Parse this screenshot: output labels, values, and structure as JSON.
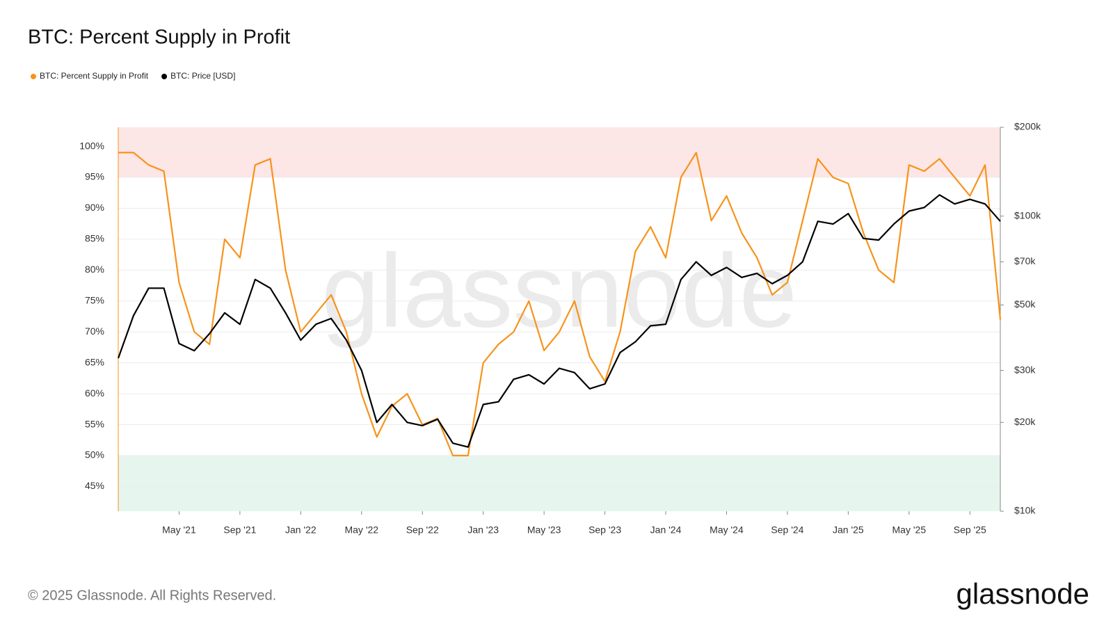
{
  "chart_data": {
    "type": "line",
    "title": "BTC: Percent Supply in Profit",
    "watermark": "glassnode",
    "x": [
      "2021-01",
      "2021-02",
      "2021-03",
      "2021-04",
      "2021-05",
      "2021-06",
      "2021-07",
      "2021-08",
      "2021-09",
      "2021-10",
      "2021-11",
      "2021-12",
      "2022-01",
      "2022-02",
      "2022-03",
      "2022-04",
      "2022-05",
      "2022-06",
      "2022-07",
      "2022-08",
      "2022-09",
      "2022-10",
      "2022-11",
      "2022-12",
      "2023-01",
      "2023-02",
      "2023-03",
      "2023-04",
      "2023-05",
      "2023-06",
      "2023-07",
      "2023-08",
      "2023-09",
      "2023-10",
      "2023-11",
      "2023-12",
      "2024-01",
      "2024-02",
      "2024-03",
      "2024-04",
      "2024-05",
      "2024-06",
      "2024-07",
      "2024-08",
      "2024-09",
      "2024-10",
      "2024-11",
      "2024-12",
      "2025-01",
      "2025-02",
      "2025-03",
      "2025-04",
      "2025-05",
      "2025-06",
      "2025-07",
      "2025-08",
      "2025-09",
      "2025-10",
      "2025-11"
    ],
    "xlim": [
      "2021-01",
      "2025-11"
    ],
    "xticks": [
      {
        "value": "2021-05",
        "label": "May '21"
      },
      {
        "value": "2021-09",
        "label": "Sep '21"
      },
      {
        "value": "2022-01",
        "label": "Jan '22"
      },
      {
        "value": "2022-05",
        "label": "May '22"
      },
      {
        "value": "2022-09",
        "label": "Sep '22"
      },
      {
        "value": "2023-01",
        "label": "Jan '23"
      },
      {
        "value": "2023-05",
        "label": "May '23"
      },
      {
        "value": "2023-09",
        "label": "Sep '23"
      },
      {
        "value": "2024-01",
        "label": "Jan '24"
      },
      {
        "value": "2024-05",
        "label": "May '24"
      },
      {
        "value": "2024-09",
        "label": "Sep '24"
      },
      {
        "value": "2025-01",
        "label": "Jan '25"
      },
      {
        "value": "2025-05",
        "label": "May '25"
      },
      {
        "value": "2025-09",
        "label": "Sep '25"
      }
    ],
    "ylim": [
      41,
      103.1
    ],
    "yticks": [
      {
        "value": 45,
        "label": "45%"
      },
      {
        "value": 50,
        "label": "50%"
      },
      {
        "value": 55,
        "label": "55%"
      },
      {
        "value": 60,
        "label": "60%"
      },
      {
        "value": 65,
        "label": "65%"
      },
      {
        "value": 70,
        "label": "70%"
      },
      {
        "value": 75,
        "label": "75%"
      },
      {
        "value": 80,
        "label": "80%"
      },
      {
        "value": 85,
        "label": "85%"
      },
      {
        "value": 90,
        "label": "90%"
      },
      {
        "value": 95,
        "label": "95%"
      },
      {
        "value": 100,
        "label": "100%"
      }
    ],
    "y2lim": [
      10000,
      200000
    ],
    "y2log": true,
    "y2ticks": [
      {
        "value": 10000,
        "label": "$10k"
      },
      {
        "value": 20000,
        "label": "$20k"
      },
      {
        "value": 30000,
        "label": "$30k"
      },
      {
        "value": 50000,
        "label": "$50k"
      },
      {
        "value": 70000,
        "label": "$70k"
      },
      {
        "value": 100000,
        "label": "$100k"
      },
      {
        "value": 200000,
        "label": "$200k"
      }
    ],
    "grid": true,
    "bands": [
      {
        "range": [
          95,
          103.1
        ],
        "color": "#fde6e6"
      },
      {
        "range": [
          41,
          50
        ],
        "color": "#e6f6ee"
      }
    ],
    "series": [
      {
        "name": "BTC: Percent Supply in Profit",
        "color": "#f7931a",
        "values": [
          99,
          99,
          97,
          96,
          78,
          70,
          68,
          85,
          82,
          97,
          98,
          80,
          70,
          73,
          76,
          70,
          60,
          53,
          58,
          60,
          55,
          56,
          50,
          50,
          65,
          68,
          70,
          75,
          67,
          70,
          75,
          66,
          62,
          70,
          83,
          87,
          82,
          95,
          99,
          88,
          92,
          86,
          82,
          76,
          78,
          88,
          98,
          95,
          94,
          86,
          80,
          78,
          97,
          96,
          98,
          95,
          92,
          97,
          72
        ]
      },
      {
        "name": "BTC: Price [USD]",
        "color": "#000000",
        "axis": "y2",
        "values": [
          33000,
          46000,
          57000,
          57000,
          37000,
          35000,
          40000,
          47000,
          43000,
          61000,
          57000,
          47000,
          38000,
          43000,
          45000,
          38000,
          30000,
          20000,
          23000,
          20000,
          19500,
          20500,
          17000,
          16500,
          23000,
          23500,
          28000,
          29000,
          27000,
          30500,
          29500,
          26000,
          27000,
          34500,
          37500,
          42500,
          43000,
          61000,
          70000,
          63000,
          67000,
          62000,
          64000,
          59000,
          63000,
          70000,
          96000,
          94000,
          102000,
          84000,
          83000,
          94000,
          104000,
          107000,
          118000,
          110000,
          114000,
          110000,
          96000
        ]
      }
    ]
  },
  "footer": {
    "copyright": "© 2025 Glassnode. All Rights Reserved.",
    "logo": "glassnode"
  }
}
